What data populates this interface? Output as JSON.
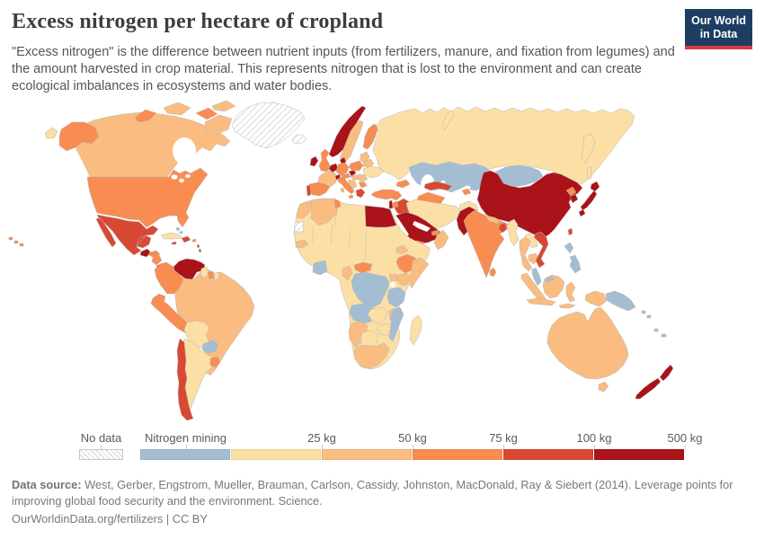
{
  "header": {
    "title": "Excess nitrogen per hectare of cropland",
    "subtitle": "\"Excess nitrogen\" is the difference between nutrient inputs (from fertilizers, manure, and fixation from legumes) and the amount harvested in crop material. This represents nitrogen that is lost to the environment and can create ecological imbalances in ecosystems and water bodies.",
    "logo": {
      "line1": "Our World",
      "line2": "in Data",
      "bg_color": "#1d3d63",
      "accent_color": "#dc3b41"
    }
  },
  "legend": {
    "no_data_label": "No data"
  },
  "footer": {
    "source_label": "Data source:",
    "source_text": " West, Gerber, Engstrom, Mueller, Brauman, Carlson, Cassidy, Johnston, MacDonald, Ray & Siebert (2014). Leverage points for improving global food security and the environment. Science.",
    "link_text": "OurWorldinData.org/fertilizers",
    "separator": " | ",
    "license_text": "CC BY"
  },
  "chart_data": {
    "type": "choropleth",
    "title": "Excess nitrogen per hectare of cropland",
    "unit": "kg",
    "legend_position": "bottom",
    "bins": [
      {
        "key": "nodata",
        "label": "No data",
        "hatch": true
      },
      {
        "key": "mining",
        "label": "Nitrogen mining",
        "color": "#a3bdd3"
      },
      {
        "key": "0-25",
        "label": "25 kg",
        "color": "#fbdfa5"
      },
      {
        "key": "25-50",
        "label": "50 kg",
        "color": "#fabc80"
      },
      {
        "key": "50-75",
        "label": "75 kg",
        "color": "#f98c51"
      },
      {
        "key": "75-100",
        "label": "100 kg",
        "color": "#d94832"
      },
      {
        "key": "100-500",
        "label": "500 kg",
        "color": "#a91319"
      }
    ],
    "regions": {
      "Greenland": "nodata",
      "Iceland": "nodata",
      "Western Sahara": "nodata",
      "Canada": "25-50",
      "Baffin Island": "25-50",
      "Arctic Island A": "50-75",
      "Arctic Island B": "25-50",
      "Arctic Island C": "50-75",
      "Ellesmere": "25-50",
      "United States": "50-75",
      "Alaska": "50-75",
      "Hawaii": "50-75",
      "Chukotka West": "0-25",
      "Mexico": "75-100",
      "Guatemala": "100-500",
      "Honduras": "50-75",
      "Nicaragua": "50-75",
      "Costa Rica": "100-500",
      "Panama": "50-75",
      "Cuba": "0-25",
      "Jamaica": "75-100",
      "Hispaniola": "75-100",
      "Puerto Rico": "50-75",
      "Bahamas": "mining",
      "Lesser Antilles": "75-100",
      "Trinidad": "50-75",
      "Venezuela": "100-500",
      "Colombia": "50-75",
      "Guyana": "0-25",
      "Suriname": "50-75",
      "French Guiana": "0-25",
      "Ecuador": "50-75",
      "Peru": "50-75",
      "Brazil": "25-50",
      "Bolivia": "0-25",
      "Paraguay": "mining",
      "Uruguay": "50-75",
      "Argentina": "0-25",
      "Chile": "75-100",
      "Norway": "100-500",
      "Sweden": "25-50",
      "Finland": "50-75",
      "Denmark": "100-500",
      "United Kingdom": "50-75",
      "Ireland": "100-500",
      "Netherlands & Belgium": "100-500",
      "Germany": "50-75",
      "France": "25-50",
      "Switzerland": "100-500",
      "Czechia": "100-500",
      "Austria": "50-75",
      "Poland": "50-75",
      "Baltic States": "25-50",
      "Belarus": "25-50",
      "Ukraine": "0-25",
      "Hungary": "25-50",
      "Romania": "25-50",
      "Balkans": "25-50",
      "Bulgaria": "50-75",
      "Greece & Albania": "75-100",
      "Italy": "50-75",
      "Sicily": "50-75",
      "Sardinia": "25-50",
      "Spain": "50-75",
      "Portugal": "75-100",
      "Russia": "0-25",
      "Novaya Zemlya": "0-25",
      "Kamchatka": "0-25",
      "Sakhalin": "0-25",
      "Kazakhstan": "mining",
      "Kyrgyzstan": "mining",
      "Tajikistan": "50-75",
      "Uzbekistan": "75-100",
      "Turkmenistan": "50-75",
      "Caucasus": "50-75",
      "Turkey": "50-75",
      "Syria": "50-75",
      "Iraq": "75-100",
      "Jordan": "50-75",
      "Israel": "100-500",
      "Iran": "0-25",
      "Afghanistan": "0-25",
      "Pakistan": "100-500",
      "Saudi Arabia": "100-500",
      "Yemen": "50-75",
      "Oman": "25-50",
      "United Arab Emirates": "50-75",
      "India": "50-75",
      "Nepal": "25-50",
      "Bangladesh": "75-100",
      "Sri Lanka": "50-75",
      "China": "100-500",
      "Mongolia": "mining",
      "North Korea": "50-75",
      "South Korea": "100-500",
      "Japan Hokkaido": "100-500",
      "Japan Honshu": "100-500",
      "Japan Kyushu": "100-500",
      "Taiwan": "75-100",
      "Hainan": "75-100",
      "Myanmar": "0-25",
      "Thailand": "25-50",
      "Laos": "0-25",
      "Cambodia": "25-50",
      "Vietnam": "75-100",
      "Peninsular Malaysia": "mining",
      "Malaysian Borneo": "mining",
      "Sumatra": "25-50",
      "Borneo (Indonesia)": "25-50",
      "Java": "25-50",
      "Sulawesi": "25-50",
      "Lesser Sunda": "25-50",
      "Indonesian Papua": "25-50",
      "Papua New Guinea": "mining",
      "Philippines": "mining",
      "Solomon Islands": "mining",
      "Fiji": "mining",
      "New Caledonia": "mining",
      "Australia": "25-50",
      "Tasmania": "25-50",
      "New Zealand North": "100-500",
      "New Zealand South": "100-500",
      "Sahara, Sahel & West Africa": "0-25",
      "Morocco": "25-50",
      "Algeria": "25-50",
      "Tunisia": "50-75",
      "Egypt": "100-500",
      "Senegal": "25-50",
      "Ghana, Togo & Benin": "mining",
      "Cameroon": "25-50",
      "Central African Republic": "50-75",
      "Ethiopia": "50-75",
      "Eritrea": "25-50",
      "Somalia": "25-50",
      "Kenya": "25-50",
      "Uganda": "25-50",
      "DR Congo": "mining",
      "Tanzania": "mining",
      "Angola": "mining",
      "Mozambique": "mining",
      "Malawi": "25-50",
      "Zambia": "0-25",
      "Zimbabwe": "0-25",
      "Namibia": "25-50",
      "Botswana": "0-25",
      "South Africa": "25-50",
      "Madagascar": "0-25"
    }
  }
}
